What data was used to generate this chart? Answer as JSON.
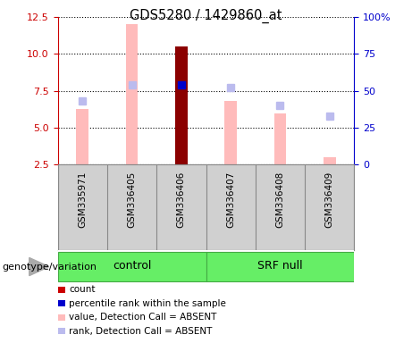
{
  "title": "GDS5280 / 1429860_at",
  "samples": [
    "GSM335971",
    "GSM336405",
    "GSM336406",
    "GSM336407",
    "GSM336408",
    "GSM336409"
  ],
  "groups": [
    "control",
    "control",
    "control",
    "SRF null",
    "SRF null",
    "SRF null"
  ],
  "group_labels": [
    "control",
    "SRF null"
  ],
  "bar_values": [
    6.3,
    12.0,
    10.5,
    6.8,
    6.0,
    3.0
  ],
  "bar_colors": [
    "#ffbbbb",
    "#ffbbbb",
    "#8b0000",
    "#ffbbbb",
    "#ffbbbb",
    "#ffbbbb"
  ],
  "rank_values": [
    6.8,
    7.9,
    7.9,
    7.7,
    6.5,
    5.8
  ],
  "rank_colors": [
    "#bbbbee",
    "#bbbbee",
    "#0000cc",
    "#bbbbee",
    "#bbbbee",
    "#bbbbee"
  ],
  "ylim_left": [
    2.5,
    12.5
  ],
  "ylim_right": [
    0,
    100
  ],
  "yticks_left": [
    2.5,
    5.0,
    7.5,
    10.0,
    12.5
  ],
  "yticks_right": [
    0,
    25,
    50,
    75,
    100
  ],
  "left_color": "#cc0000",
  "right_color": "#0000cc",
  "bg_color": "#ffffff",
  "grid_color": "#000000",
  "legend_items": [
    {
      "label": "count",
      "color": "#cc0000"
    },
    {
      "label": "percentile rank within the sample",
      "color": "#0000cc"
    },
    {
      "label": "value, Detection Call = ABSENT",
      "color": "#ffbbbb"
    },
    {
      "label": "rank, Detection Call = ABSENT",
      "color": "#bbbbee"
    }
  ],
  "bar_width": 0.25,
  "marker_size": 6,
  "genotype_label": "genotype/variation"
}
